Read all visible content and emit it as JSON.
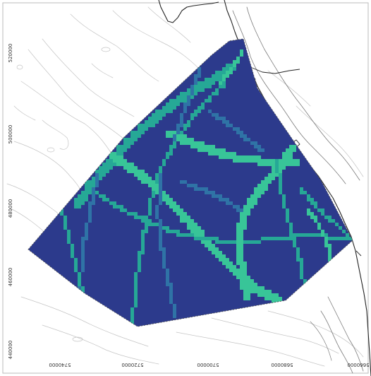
{
  "map": {
    "colors": {
      "background": "#ffffff",
      "frame": "#bbbbbb",
      "contour_light": "#c4c4c4",
      "contour_dark": "#7a7a7a",
      "coastline": "#222222",
      "grid_base": "#2c3a8c",
      "grid_route_teal": "#26a896",
      "grid_route_green": "#38c598",
      "grid_route_blue": "#2f73a6",
      "grid_boundary": "#555555"
    },
    "y_tick_labels": [
      "520000",
      "500000",
      "480000",
      "460000",
      "440000"
    ],
    "x_tick_labels": [
      "5740000",
      "5720000",
      "5700000",
      "5680000",
      "5660000"
    ]
  }
}
